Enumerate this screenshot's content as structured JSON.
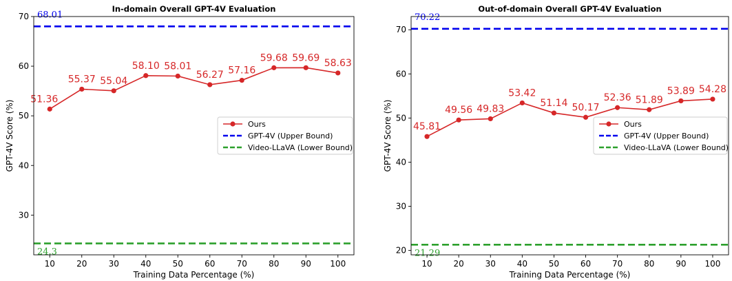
{
  "chart_data": [
    {
      "type": "line",
      "title": "In-domain Overall GPT-4V Evaluation",
      "xlabel": "Training Data Percentage (%)",
      "ylabel": "GPT-4V Score (%)",
      "x": [
        10,
        20,
        30,
        40,
        50,
        60,
        70,
        80,
        90,
        100
      ],
      "xticks": [
        "10",
        "20",
        "30",
        "40",
        "50",
        "60",
        "70",
        "80",
        "90",
        "100"
      ],
      "xlim": [
        5,
        105
      ],
      "ylim": [
        22,
        70
      ],
      "yticks": [
        "30",
        "40",
        "50",
        "60",
        "70"
      ],
      "legend_position": "center-right",
      "grid": false,
      "series": [
        {
          "name": "Ours",
          "color": "#d62728",
          "values": [
            51.36,
            55.37,
            55.04,
            58.1,
            58.01,
            56.27,
            57.16,
            59.68,
            59.69,
            58.63
          ],
          "labels": [
            "51.36",
            "55.37",
            "55.04",
            "58.10",
            "58.01",
            "56.27",
            "57.16",
            "59.68",
            "59.69",
            "58.63"
          ]
        }
      ],
      "reference_lines": [
        {
          "name": "GPT-4V (Upper Bound)",
          "value": 68.01,
          "label": "68.01",
          "color": "#0000ee"
        },
        {
          "name": "Video-LLaVA (Lower Bound)",
          "value": 24.3,
          "label": "24.3",
          "color": "#2ca02c"
        }
      ]
    },
    {
      "type": "line",
      "title": "Out-of-domain Overall GPT-4V Evaluation",
      "xlabel": "Training Data Percentage (%)",
      "ylabel": "GPT-4V Score (%)",
      "x": [
        10,
        20,
        30,
        40,
        50,
        60,
        70,
        80,
        90,
        100
      ],
      "xticks": [
        "10",
        "20",
        "30",
        "40",
        "50",
        "60",
        "70",
        "80",
        "90",
        "100"
      ],
      "xlim": [
        5,
        105
      ],
      "ylim": [
        19,
        73
      ],
      "yticks": [
        "20",
        "30",
        "40",
        "50",
        "60",
        "70"
      ],
      "legend_position": "center-right",
      "grid": false,
      "series": [
        {
          "name": "Ours",
          "color": "#d62728",
          "values": [
            45.81,
            49.56,
            49.83,
            53.42,
            51.14,
            50.17,
            52.36,
            51.89,
            53.89,
            54.28
          ],
          "labels": [
            "45.81",
            "49.56",
            "49.83",
            "53.42",
            "51.14",
            "50.17",
            "52.36",
            "51.89",
            "53.89",
            "54.28"
          ]
        }
      ],
      "reference_lines": [
        {
          "name": "GPT-4V (Upper Bound)",
          "value": 70.22,
          "label": "70.22",
          "color": "#0000ee"
        },
        {
          "name": "Video-LLaVA (Lower Bound)",
          "value": 21.29,
          "label": "21.29",
          "color": "#2ca02c"
        }
      ]
    }
  ]
}
